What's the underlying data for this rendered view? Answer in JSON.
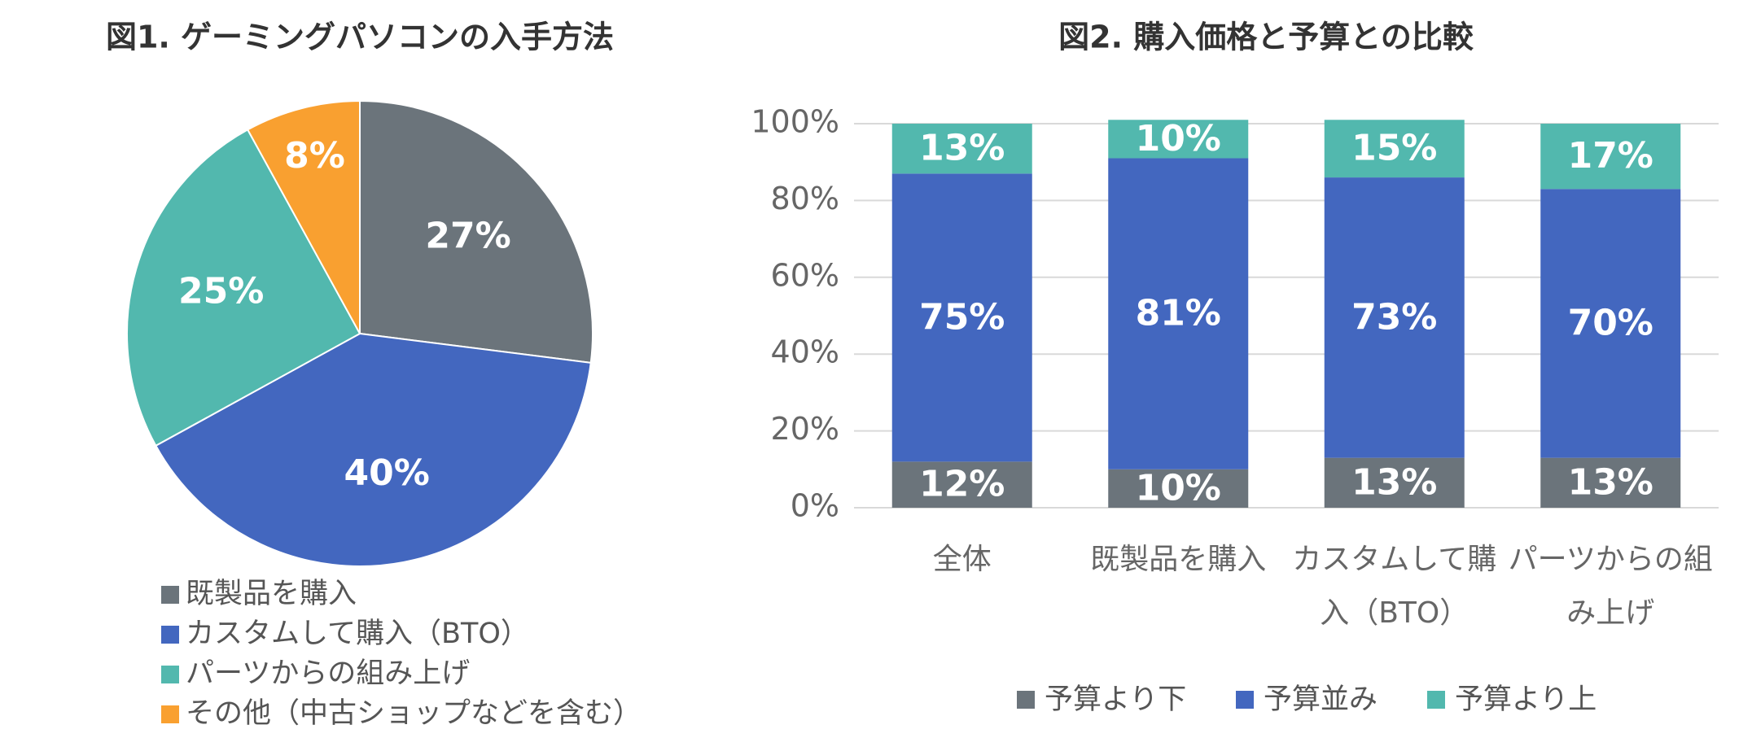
{
  "chart_data": [
    {
      "type": "pie",
      "title": "図1. ゲーミングパソコンの入手方法",
      "categories": [
        "既製品を購入",
        "カスタムして購入（BTO）",
        "パーツからの組み上げ",
        "その他（中古ショップなどを含む）"
      ],
      "values": [
        27,
        40,
        25,
        8
      ],
      "value_labels": [
        "27%",
        "40%",
        "25%",
        "8%"
      ],
      "colors": [
        "#6b747b",
        "#4367bf",
        "#52b8ae",
        "#f9a030"
      ]
    },
    {
      "type": "stacked_bar",
      "title": "図2. 購入価格と予算との比較",
      "categories": [
        "全体",
        "既製品を購入",
        "カスタムして購入（BTO）",
        "パーツからの組み上げ"
      ],
      "series": [
        {
          "name": "予算より下",
          "color": "#6b747b",
          "values": [
            12,
            10,
            13,
            13
          ],
          "value_labels": [
            "12%",
            "10%",
            "13%",
            "13%"
          ]
        },
        {
          "name": "予算並み",
          "color": "#4367bf",
          "values": [
            75,
            81,
            73,
            70
          ],
          "value_labels": [
            "75%",
            "81%",
            "73%",
            "70%"
          ]
        },
        {
          "name": "予算より上",
          "color": "#52b8ae",
          "values": [
            13,
            10,
            15,
            17
          ],
          "value_labels": [
            "13%",
            "10%",
            "15%",
            "17%"
          ]
        }
      ],
      "ylim": [
        0,
        100
      ],
      "yticks": [
        {
          "value": 0,
          "label": "0%"
        },
        {
          "value": 20,
          "label": "20%"
        },
        {
          "value": 40,
          "label": "40%"
        },
        {
          "value": 60,
          "label": "60%"
        },
        {
          "value": 80,
          "label": "80%"
        },
        {
          "value": 100,
          "label": "100%"
        }
      ],
      "grid": true
    }
  ]
}
